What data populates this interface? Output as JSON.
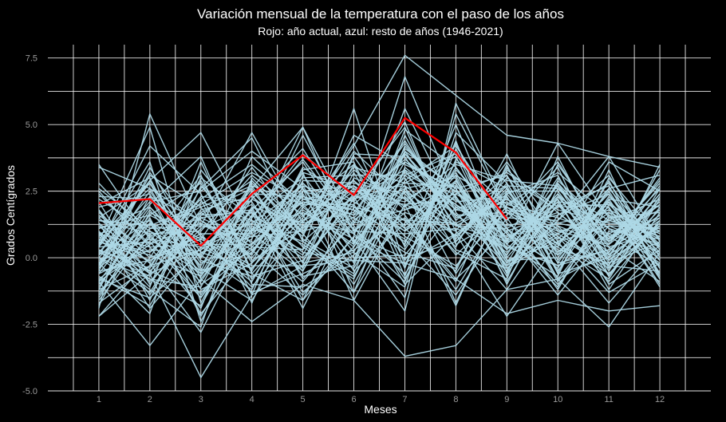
{
  "chart_data": {
    "type": "line",
    "title": "Variación mensual de la temperatura con el paso de los años",
    "subtitle": "Rojo: año actual, azul: resto de años (1946-2021)",
    "xlabel": "Meses",
    "ylabel": "Grados Centígrados",
    "x": [
      1,
      2,
      3,
      4,
      5,
      6,
      7,
      8,
      9,
      10,
      11,
      12
    ],
    "x_tick_labels": [
      "1",
      "2",
      "3",
      "4",
      "5",
      "6",
      "7",
      "8",
      "9",
      "10",
      "11",
      "12"
    ],
    "y_tick_values": [
      -5.0,
      -2.5,
      0.0,
      2.5,
      5.0,
      7.5
    ],
    "y_tick_labels": [
      "-5.0",
      "-2.5",
      "0.0",
      "2.5",
      "5.0",
      "7.5"
    ],
    "xlim": [
      -0.0,
      13.0
    ],
    "ylim": [
      -5.0,
      8.0
    ],
    "grid": true,
    "colors": {
      "background": "#000000",
      "grid": "#ffffff",
      "history": "#add8e6",
      "current": "#ff0000"
    },
    "current_year": {
      "values": [
        2.05,
        2.2,
        0.45,
        2.4,
        3.85,
        2.35,
        5.25,
        3.95,
        1.45
      ]
    },
    "history_series": [
      [
        0.3,
        -0.5,
        1.2,
        0.8,
        2.1,
        1.5,
        3.2,
        2.0,
        0.4,
        -0.3,
        0.9,
        0.2
      ],
      [
        -0.8,
        0.6,
        -1.5,
        1.1,
        0.3,
        2.4,
        1.0,
        3.1,
        1.9,
        0.5,
        -0.6,
        1.3
      ],
      [
        1.5,
        2.8,
        0.2,
        -0.4,
        1.7,
        0.9,
        4.1,
        2.6,
        -0.2,
        1.2,
        0.4,
        -0.9
      ],
      [
        -1.2,
        -0.3,
        2.1,
        1.4,
        -0.5,
        3.0,
        2.2,
        0.8,
        2.7,
        -0.8,
        1.6,
        0.7
      ],
      [
        0.9,
        1.4,
        -2.1,
        0.2,
        2.8,
        1.1,
        -0.6,
        1.9,
        0.6,
        2.3,
        -0.1,
        1.8
      ],
      [
        2.1,
        -1.0,
        1.6,
        2.9,
        0.7,
        -0.4,
        2.9,
        4.2,
        1.3,
        0.1,
        2.5,
        -0.4
      ],
      [
        -0.4,
        3.2,
        0.8,
        -1.1,
        1.2,
        2.6,
        1.4,
        -0.9,
        3.3,
        1.7,
        0.2,
        2.4
      ],
      [
        0.6,
        0.1,
        -0.7,
        1.8,
        -1.3,
        0.4,
        3.6,
        2.3,
        -0.7,
        2.9,
        1.1,
        0.5
      ],
      [
        1.8,
        -1.6,
        2.7,
        0.5,
        2.3,
        1.8,
        0.3,
        3.4,
        0.9,
        -1.1,
        2.0,
        1.0
      ],
      [
        -1.6,
        0.9,
        1.0,
        3.1,
        1.6,
        -1.0,
        2.5,
        1.2,
        2.2,
        0.8,
        -1.3,
        -0.2
      ],
      [
        0.2,
        2.3,
        -1.2,
        -0.2,
        3.4,
        2.1,
        5.1,
        0.5,
        1.6,
        3.6,
        0.6,
        2.9
      ],
      [
        2.5,
        0.4,
        0.5,
        1.3,
        0.1,
        3.5,
        1.8,
        2.8,
        -0.4,
        1.4,
        3.1,
        0.0
      ],
      [
        -0.2,
        -2.1,
        3.3,
        0.9,
        2.6,
        0.2,
        -1.1,
        4.7,
        2.8,
        -0.2,
        0.3,
        1.6
      ],
      [
        1.1,
        1.9,
        -0.3,
        2.4,
        -0.8,
        1.3,
        3.9,
        1.6,
        0.2,
        2.1,
        1.9,
        -1.1
      ],
      [
        -1.0,
        1.1,
        1.9,
        -0.8,
        1.9,
        2.9,
        0.8,
        -0.3,
        1.8,
        0.4,
        -0.8,
        2.2
      ],
      [
        0.7,
        -0.8,
        -1.8,
        1.6,
        0.5,
        -0.7,
        2.6,
        3.0,
        -1.0,
        2.6,
        1.4,
        0.8
      ],
      [
        3.4,
        2.6,
        1.4,
        0.0,
        2.2,
        1.6,
        4.4,
        1.4,
        3.1,
        -0.6,
        0.0,
        3.3
      ],
      [
        -0.6,
        0.3,
        0.1,
        2.6,
        -0.2,
        3.8,
        1.1,
        2.5,
        0.7,
        1.9,
        2.7,
        -0.6
      ],
      [
        0.4,
        4.2,
        2.4,
        -1.4,
        3.1,
        0.6,
        -0.2,
        0.9,
        2.4,
        3.1,
        -0.4,
        1.2
      ],
      [
        1.3,
        -0.2,
        -2.8,
        1.0,
        1.4,
        2.2,
        2.8,
        3.8,
        -0.1,
        0.6,
        1.2,
        0.4
      ],
      [
        -1.8,
        1.7,
        0.7,
        3.4,
        0.9,
        -1.3,
        3.4,
        1.8,
        1.5,
        -1.2,
        2.2,
        1.9
      ],
      [
        0.0,
        -1.3,
        1.7,
        0.4,
        2.5,
        2.7,
        1.6,
        -1.2,
        2.0,
        1.5,
        0.8,
        -0.3
      ],
      [
        2.8,
        0.8,
        -0.9,
        1.9,
        -1.6,
        0.8,
        6.8,
        2.2,
        0.3,
        2.4,
        -0.5,
        2.6
      ],
      [
        -0.3,
        2.0,
        3.8,
        -0.6,
        1.5,
        4.3,
        0.4,
        3.6,
        2.6,
        0.2,
        1.7,
        0.9
      ],
      [
        0.8,
        -0.6,
        0.3,
        2.2,
        4.1,
        1.0,
        2.3,
        0.2,
        -0.8,
        3.8,
        0.1,
        1.4
      ],
      [
        -1.4,
        1.3,
        -1.4,
        1.2,
        0.0,
        2.0,
        -0.8,
        2.7,
        1.1,
        -0.4,
        2.9,
        -0.7
      ],
      [
        1.6,
        0.2,
        2.2,
        -1.7,
        2.7,
        -0.2,
        4.6,
        1.0,
        3.6,
        1.0,
        0.5,
        2.0
      ],
      [
        0.1,
        2.9,
        0.0,
        2.8,
        1.0,
        3.3,
        1.9,
        4.0,
        0.0,
        2.2,
        -1.0,
        0.3
      ],
      [
        -0.7,
        -1.8,
        1.5,
        0.6,
        -0.9,
        1.4,
        3.0,
        -0.6,
        2.3,
        -0.9,
        1.5,
        1.7
      ],
      [
        2.2,
        1.0,
        -0.5,
        3.8,
        2.0,
        0.0,
        0.1,
        2.4,
        1.2,
        1.6,
        2.4,
        -0.1
      ],
      [
        -2.2,
        0.0,
        2.9,
        -0.1,
        1.1,
        2.5,
        2.7,
        1.3,
        -0.5,
        2.8,
        0.7,
        2.8
      ],
      [
        0.5,
        3.6,
        -2.4,
        1.5,
        3.7,
        1.2,
        -1.5,
        5.4,
        1.7,
        0.3,
        -0.2,
        0.6
      ],
      [
        1.0,
        -0.9,
        1.1,
        2.0,
        -0.4,
        3.9,
        3.8,
        0.7,
        3.0,
        1.8,
        1.3,
        1.1
      ],
      [
        -0.9,
        1.6,
        0.6,
        -0.9,
        2.4,
        -0.5,
        1.3,
        2.9,
        0.5,
        -0.7,
        3.3,
        -0.8
      ],
      [
        0.3,
        -0.4,
        2.6,
        4.5,
        0.6,
        2.3,
        2.0,
        -1.8,
        2.5,
        2.5,
        0.0,
        1.5
      ],
      [
        1.9,
        2.4,
        -1.0,
        0.3,
        1.8,
        0.5,
        5.6,
        1.7,
        -0.3,
        0.9,
        1.8,
        0.1
      ],
      [
        -0.1,
        0.7,
        0.4,
        1.7,
        -1.9,
        1.9,
        0.6,
        3.3,
        1.4,
        3.4,
        -0.7,
        2.3
      ],
      [
        0.9,
        -1.1,
        3.6,
        -0.5,
        2.9,
        2.8,
        2.4,
        0.4,
        3.9,
        -0.1,
        2.1,
        0.4
      ],
      [
        -1.1,
        1.8,
        -0.6,
        2.5,
        0.4,
        -0.8,
        3.3,
        2.0,
        0.8,
        1.3,
        0.9,
        1.8
      ],
      [
        2.4,
        0.5,
        1.3,
        0.1,
        3.3,
        3.6,
        -0.4,
        4.4,
        -0.6,
        2.0,
        -0.3,
        -0.5
      ],
      [
        0.6,
        4.9,
        -1.7,
        1.9,
        1.3,
        1.7,
        4.3,
        1.5,
        2.1,
        0.7,
        2.6,
        3.1
      ],
      [
        -0.5,
        -0.1,
        0.9,
        -1.3,
        -0.6,
        0.3,
        1.5,
        -0.8,
        1.0,
        -1.4,
        1.0,
        0.7
      ],
      [
        1.4,
        1.2,
        2.0,
        3.2,
        2.2,
        2.5,
        2.1,
        3.5,
        2.9,
        2.7,
        0.4,
        1.0
      ],
      [
        -0.2,
        2.5,
        -0.2,
        0.7,
        4.6,
        1.0,
        0.9,
        1.1,
        0.4,
        0.4,
        3.6,
        2.5
      ],
      [
        0.2,
        -0.7,
        1.8,
        2.3,
        0.8,
        4.6,
        3.5,
        2.6,
        -0.9,
        2.3,
        1.1,
        -0.2
      ],
      [
        -1.5,
        1.5,
        -2.2,
        1.1,
        1.7,
        0.7,
        -2.0,
        5.8,
        1.8,
        1.1,
        -0.6,
        1.3
      ],
      [
        1.7,
        0.0,
        0.8,
        -0.3,
        -0.3,
        2.4,
        4.9,
        0.6,
        2.6,
        -0.5,
        2.3,
        0.5
      ],
      [
        0.0,
        2.1,
        2.5,
        4.0,
        2.6,
        -1.6,
        2.0,
        2.2,
        0.1,
        3.0,
        0.6,
        2.1
      ],
      [
        -0.8,
        -1.5,
        0.2,
        0.8,
        1.0,
        1.5,
        0.2,
        -0.4,
        3.4,
        0.6,
        1.9,
        -1.0
      ],
      [
        2.0,
        3.0,
        -0.8,
        1.6,
        3.0,
        3.1,
        3.1,
        3.9,
        1.1,
        2.2,
        -1.2,
        1.7
      ],
      [
        0.4,
        0.6,
        3.1,
        -1.0,
        -1.1,
        0.1,
        1.7,
        1.0,
        -1.2,
        1.6,
        2.8,
        0.3
      ],
      [
        -0.6,
        1.9,
        0.0,
        2.7,
        2.0,
        2.0,
        3.7,
        2.1,
        2.3,
        -0.8,
        0.2,
        2.7
      ],
      [
        1.2,
        -0.5,
        -1.3,
        0.4,
        0.3,
        5.6,
        -0.3,
        4.3,
        0.6,
        4.3,
        1.5,
        0.8
      ],
      [
        -1.3,
        0.8,
        1.5,
        1.8,
        3.6,
        0.6,
        2.5,
        0.1,
        1.9,
        1.2,
        -0.9,
        1.4
      ],
      [
        0.8,
        2.6,
        -0.4,
        -1.6,
        1.4,
        2.9,
        1.2,
        3.2,
        -0.1,
        0.0,
        2.2,
        -0.6
      ],
      [
        1.5,
        -0.2,
        2.3,
        2.1,
        -0.7,
        -0.3,
        4.2,
        1.8,
        2.7,
        2.6,
        0.7,
        2.0
      ],
      [
        -0.4,
        1.3,
        0.5,
        0.5,
        2.1,
        1.8,
        0.7,
        -1.4,
        1.5,
        1.4,
        3.8,
        0.6
      ],
      [
        0.3,
        -1.2,
        -2.6,
        3.0,
        1.1,
        3.4,
        2.8,
        2.7,
        0.9,
        -0.3,
        0.3,
        1.6
      ],
      [
        2.6,
        1.1,
        1.2,
        1.0,
        2.8,
        0.9,
        -0.9,
        3.7,
        2.0,
        3.2,
        1.6,
        -0.3
      ],
      [
        -0.3,
        3.4,
        -0.1,
        -0.7,
        -0.1,
        2.2,
        3.3,
        0.3,
        -0.4,
        0.8,
        -0.4,
        2.3
      ],
      [
        0.7,
        0.2,
        1.7,
        2.6,
        4.9,
        1.3,
        1.8,
        2.4,
        3.2,
        1.9,
        2.0,
        0.2
      ],
      [
        -1.7,
        -0.3,
        0.3,
        1.4,
        0.6,
        -0.6,
        4.0,
        1.2,
        1.1,
        -1.0,
        1.2,
        1.1
      ],
      [
        1.1,
        1.6,
        2.8,
        -0.2,
        1.6,
        2.7,
        0.5,
        5.0,
        0.3,
        2.4,
        0.5,
        3.0
      ],
      [
        0.0,
        -0.8,
        -1.1,
        2.4,
        2.3,
        1.6,
        2.6,
        0.8,
        2.5,
        0.5,
        2.4,
        -0.4
      ],
      [
        2.3,
        2.2,
        0.9,
        0.9,
        -0.5,
        3.2,
        -0.1,
        2.9,
        -0.2,
        2.8,
        -0.1,
        1.2
      ],
      [
        -0.9,
        0.5,
        2.2,
        3.5,
        1.9,
        0.4,
        3.1,
        1.6,
        1.7,
        1.0,
        1.4,
        2.2
      ],
      [
        0.5,
        2.8,
        -0.5,
        0.2,
        3.2,
        2.6,
        1.1,
        -0.5,
        3.5,
        -0.6,
        3.0,
        0.7
      ],
      [
        1.3,
        -1.4,
        1.6,
        1.7,
        0.2,
        -0.1,
        4.8,
        3.4,
        0.7,
        2.1,
        -0.7,
        1.9
      ],
      [
        -0.2,
        1.0,
        0.1,
        -1.2,
        2.5,
        1.9,
        1.4,
        1.3,
        2.2,
        1.3,
        1.7,
        -0.1
      ],
      [
        0.9,
        0.4,
        -1.9,
        2.9,
        0.9,
        4.0,
        2.2,
        3.1,
        -0.6,
        3.5,
        0.8,
        1.5
      ],
      [
        -1.2,
        2.3,
        1.4,
        0.3,
        -1.4,
        0.8,
        0.0,
        0.6,
        2.8,
        -0.2,
        2.6,
        0.4
      ],
      [
        1.8,
        -0.6,
        3.0,
        1.5,
        3.9,
        2.3,
        3.6,
        2.5,
        1.0,
        1.7,
        0.1,
        2.4
      ],
      [
        0.1,
        1.4,
        -0.7,
        2.2,
        1.2,
        1.0,
        2.7,
        -1.7,
        2.4,
        0.2,
        2.1,
        -0.8
      ],
      [
        0.6,
        -0.1,
        0.7,
        -0.4,
        2.0,
        3.5,
        -0.7,
        4.1,
        0.5,
        2.7,
        -0.2,
        1.3
      ],
      [
        -0.5,
        3.1,
        1.9,
        2.7,
        -0.2,
        0.2,
        3.9,
        1.9,
        1.9,
        0.9,
        1.8,
        0.9
      ],
      [
        1.4,
        0.9,
        -1.5,
        1.3,
        2.7,
        2.1,
        1.0,
        2.3,
        -0.3,
        2.0,
        0.6,
        2.6
      ]
    ],
    "history_outliers": [
      [
        3.5,
        0.7,
        -0.6,
        0.5,
        3.2,
        -1.3,
        2.0,
        1.2,
        0.6,
        0.9,
        -0.3,
        3.5
      ],
      [
        -1.9,
        5.4,
        1.2,
        4.7,
        1.3,
        4.2,
        7.6,
        6.1,
        4.6,
        4.3,
        3.8,
        3.4
      ],
      [
        -2.2,
        -0.6,
        -4.5,
        -1.4,
        -0.3,
        -0.1,
        -0.2,
        -0.8,
        -2.1,
        -1.6,
        -2.0,
        -1.8
      ],
      [
        -0.9,
        -3.3,
        -0.8,
        -2.4,
        -1.0,
        -1.6,
        -3.7,
        -3.3,
        -1.2,
        -0.8,
        -2.6,
        0.2
      ],
      [
        0.4,
        2.9,
        4.7,
        1.0,
        4.9,
        0.5,
        4.0,
        2.6,
        3.1,
        0.1,
        1.4,
        1.0
      ],
      [
        1.0,
        -1.9,
        0.4,
        -0.6,
        -1.6,
        2.3,
        -1.0,
        0.9,
        -2.2,
        0.6,
        -1.7,
        0.5
      ]
    ]
  }
}
